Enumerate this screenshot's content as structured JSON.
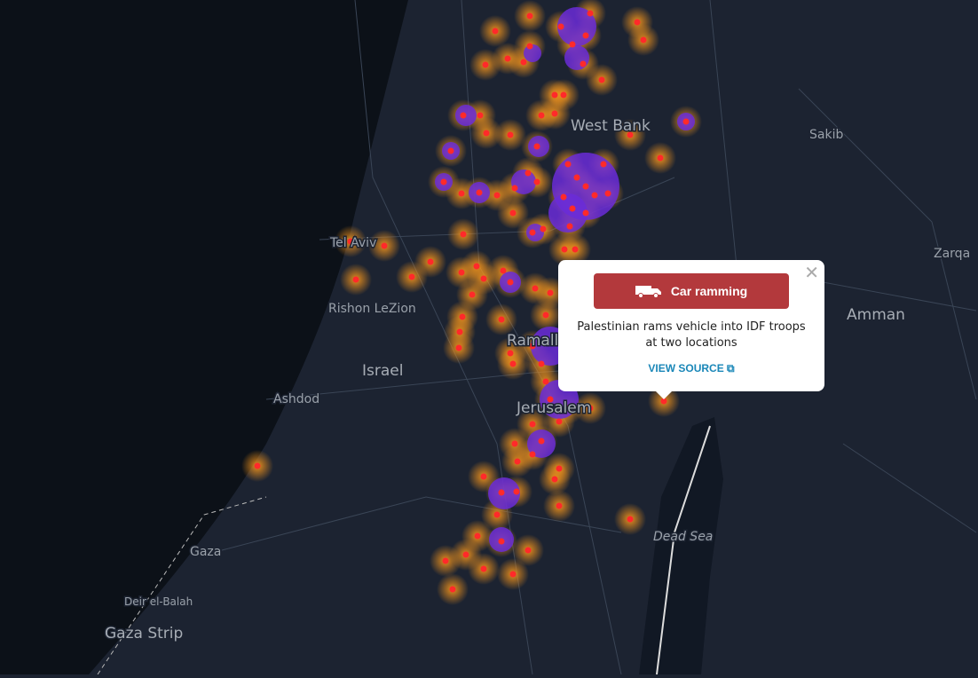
{
  "map": {
    "labels": {
      "west_bank": "West Bank",
      "sakib": "Sakib",
      "tel_aviv": "Tel Aviv",
      "rishon": "Rishon LeZion",
      "israel": "Israel",
      "ashdod": "Ashdod",
      "ramallah": "Ramallah",
      "jerusalem": "Jerusalem",
      "amman": "Amman",
      "zarqa": "Zarqa",
      "dead_sea": "Dead Sea",
      "gaza": "Gaza",
      "deir": "Deir el-Balah",
      "gaza_strip": "Gaza Strip"
    }
  },
  "popup": {
    "category": "Car ramming",
    "description": "Palestinian rams vehicle into IDF troops at two locations",
    "link": "VIEW SOURCE"
  }
}
